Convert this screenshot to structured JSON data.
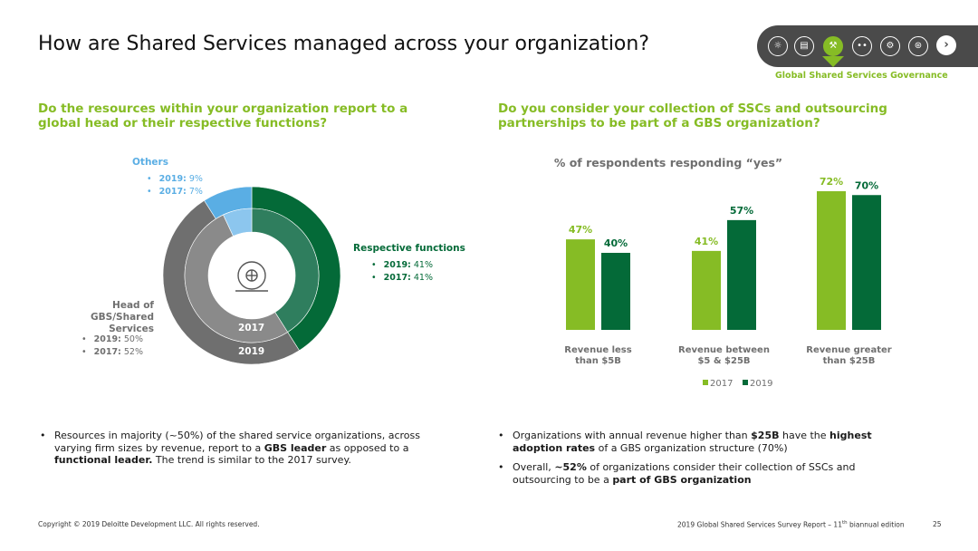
{
  "title": "How are Shared Services managed across your organization?",
  "nav": {
    "caption": "Global Shared Services Governance",
    "icons": [
      "globe-icon",
      "document-icon",
      "gavel-icon",
      "footprints-icon",
      "tools-icon",
      "telescope-icon"
    ],
    "next_icon": "chevron-right-icon",
    "accent_color": "#86bc25"
  },
  "left": {
    "question": "Do the resources within your organization report to a global head or their respective functions?",
    "others": {
      "label": "Others",
      "y2019_label": "2019:",
      "y2019_value": "9%",
      "y2017_label": "2017:",
      "y2017_value": "7%"
    },
    "respective": {
      "label": "Respective functions",
      "y2019_label": "2019:",
      "y2019_value": "41%",
      "y2017_label": "2017:",
      "y2017_value": "41%"
    },
    "head": {
      "label_line1": "Head of",
      "label_line2": "GBS/Shared",
      "label_line3": "Services",
      "y2019_label": "2019:",
      "y2019_value": "50%",
      "y2017_label": "2017:",
      "y2017_value": "52%"
    },
    "ring_2017": "2017",
    "ring_2019": "2019",
    "center_icon": "globe-cycle-icon"
  },
  "right": {
    "question": "Do you consider your collection of SSCs and outsourcing partnerships to be part of a GBS organization?"
  },
  "chart_data": [
    {
      "type": "pie",
      "subtype": "nested-donut",
      "categories": [
        "Respective functions",
        "Head of GBS/Shared Services",
        "Others"
      ],
      "series": [
        {
          "name": "2019",
          "values": [
            41,
            50,
            9
          ],
          "ring": "outer"
        },
        {
          "name": "2017",
          "values": [
            41,
            52,
            7
          ],
          "ring": "inner"
        }
      ],
      "colors": [
        "#046a38",
        "#6f6f6f",
        "#5aaee4"
      ]
    },
    {
      "type": "bar",
      "title": "% of respondents responding “yes”",
      "categories": [
        "Revenue less than $5B",
        "Revenue between $5 & $25B",
        "Revenue greater than $25B"
      ],
      "category_lines": [
        [
          "Revenue less",
          "than $5B"
        ],
        [
          "Revenue between",
          "$5 & $25B"
        ],
        [
          "Revenue greater",
          "than $25B"
        ]
      ],
      "series": [
        {
          "name": "2017",
          "values": [
            47,
            41,
            72
          ],
          "color": "#86bc25"
        },
        {
          "name": "2019",
          "values": [
            40,
            57,
            70
          ],
          "color": "#046a38"
        }
      ],
      "value_suffix": "%",
      "ylim": [
        0,
        80
      ],
      "grid": false,
      "legend": "bottom"
    }
  ],
  "bullets_left": [
    {
      "parts": [
        {
          "t": "Resources in majority (~50%) of the shared service organizations, across varying firm sizes by revenue, report to a ",
          "b": false
        },
        {
          "t": "GBS leader",
          "b": true
        },
        {
          "t": " as opposed to a ",
          "b": false
        },
        {
          "t": "functional leader.",
          "b": true
        },
        {
          "t": " The trend is similar to the 2017 survey.",
          "b": false
        }
      ]
    }
  ],
  "bullets_right": [
    {
      "parts": [
        {
          "t": "Organizations with annual revenue higher than ",
          "b": false
        },
        {
          "t": "$25B",
          "b": true
        },
        {
          "t": " have the ",
          "b": false
        },
        {
          "t": "highest adoption rates",
          "b": true
        },
        {
          "t": " of a GBS organization structure (70%)",
          "b": false
        }
      ]
    },
    {
      "parts": [
        {
          "t": "Overall, ",
          "b": false
        },
        {
          "t": "~52%",
          "b": true
        },
        {
          "t": " of organizations consider their collection of SSCs and outsourcing to be a ",
          "b": false
        },
        {
          "t": "part of GBS organization",
          "b": true
        }
      ]
    }
  ],
  "footer": {
    "copyright": "Copyright © 2019 Deloitte Development LLC. All rights reserved.",
    "report_prefix": "2019 Global Shared Services Survey Report – 11",
    "report_sup": "th",
    "report_suffix": " biannual edition",
    "page": "25"
  }
}
